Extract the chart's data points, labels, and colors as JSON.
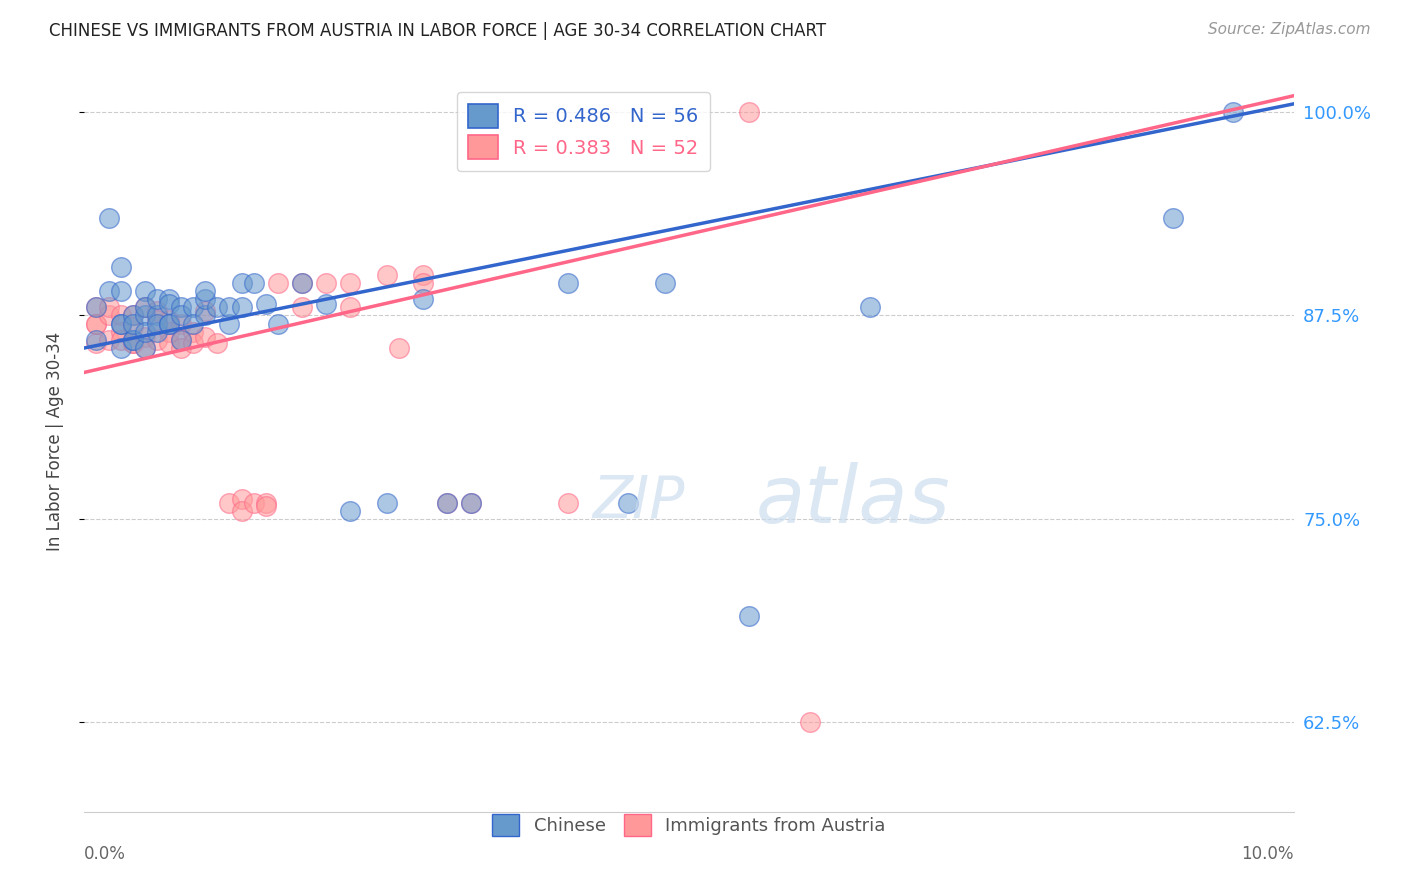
{
  "title": "CHINESE VS IMMIGRANTS FROM AUSTRIA IN LABOR FORCE | AGE 30-34 CORRELATION CHART",
  "source": "Source: ZipAtlas.com",
  "ylabel": "In Labor Force | Age 30-34",
  "xmin": 0.0,
  "xmax": 0.1,
  "ymin": 0.57,
  "ymax": 1.025,
  "yticks": [
    0.625,
    0.75,
    0.875,
    1.0
  ],
  "ytick_labels": [
    "62.5%",
    "75.0%",
    "87.5%",
    "100.0%"
  ],
  "legend_blue_r": "R = 0.486",
  "legend_blue_n": "N = 56",
  "legend_pink_r": "R = 0.383",
  "legend_pink_n": "N = 52",
  "blue_color": "#6699CC",
  "pink_color": "#FF9999",
  "trendline_blue": "#3366CC",
  "trendline_pink": "#FF6688",
  "title_color": "#222222",
  "axis_label_color": "#444444",
  "right_tick_color": "#3399FF",
  "watermark_color": "#CCDDEF",
  "blue_scatter_x": [
    0.001,
    0.001,
    0.002,
    0.002,
    0.003,
    0.003,
    0.003,
    0.003,
    0.003,
    0.004,
    0.004,
    0.004,
    0.004,
    0.005,
    0.005,
    0.005,
    0.005,
    0.005,
    0.006,
    0.006,
    0.006,
    0.006,
    0.007,
    0.007,
    0.007,
    0.007,
    0.008,
    0.008,
    0.008,
    0.009,
    0.009,
    0.01,
    0.01,
    0.01,
    0.011,
    0.012,
    0.012,
    0.013,
    0.013,
    0.014,
    0.015,
    0.016,
    0.018,
    0.02,
    0.022,
    0.025,
    0.028,
    0.03,
    0.032,
    0.04,
    0.045,
    0.048,
    0.055,
    0.065,
    0.09,
    0.095
  ],
  "blue_scatter_y": [
    0.88,
    0.86,
    0.89,
    0.935,
    0.87,
    0.89,
    0.905,
    0.87,
    0.855,
    0.86,
    0.875,
    0.86,
    0.87,
    0.855,
    0.875,
    0.89,
    0.865,
    0.88,
    0.875,
    0.865,
    0.885,
    0.87,
    0.885,
    0.87,
    0.882,
    0.87,
    0.88,
    0.86,
    0.875,
    0.88,
    0.87,
    0.875,
    0.885,
    0.89,
    0.88,
    0.87,
    0.88,
    0.88,
    0.895,
    0.895,
    0.882,
    0.87,
    0.895,
    0.882,
    0.755,
    0.76,
    0.885,
    0.76,
    0.76,
    0.895,
    0.76,
    0.895,
    0.69,
    0.88,
    0.935,
    1.0
  ],
  "pink_scatter_x": [
    0.001,
    0.001,
    0.001,
    0.001,
    0.002,
    0.002,
    0.002,
    0.003,
    0.003,
    0.003,
    0.004,
    0.004,
    0.004,
    0.004,
    0.005,
    0.005,
    0.005,
    0.006,
    0.006,
    0.006,
    0.007,
    0.007,
    0.007,
    0.008,
    0.008,
    0.008,
    0.009,
    0.009,
    0.01,
    0.01,
    0.011,
    0.012,
    0.013,
    0.013,
    0.014,
    0.015,
    0.015,
    0.016,
    0.018,
    0.018,
    0.02,
    0.022,
    0.022,
    0.025,
    0.026,
    0.028,
    0.028,
    0.03,
    0.032,
    0.04,
    0.055,
    0.06
  ],
  "pink_scatter_y": [
    0.88,
    0.87,
    0.858,
    0.87,
    0.875,
    0.88,
    0.86,
    0.875,
    0.865,
    0.86,
    0.875,
    0.858,
    0.868,
    0.858,
    0.88,
    0.862,
    0.855,
    0.878,
    0.86,
    0.872,
    0.872,
    0.865,
    0.858,
    0.87,
    0.86,
    0.855,
    0.865,
    0.858,
    0.878,
    0.862,
    0.858,
    0.76,
    0.762,
    0.755,
    0.76,
    0.76,
    0.758,
    0.895,
    0.895,
    0.88,
    0.895,
    0.895,
    0.88,
    0.9,
    0.855,
    0.9,
    0.895,
    0.76,
    0.76,
    0.76,
    1.0,
    0.625
  ],
  "blue_trendline_x0": 0.0,
  "blue_trendline_x1": 0.1,
  "blue_trendline_y0": 0.855,
  "blue_trendline_y1": 1.005,
  "pink_trendline_x0": 0.0,
  "pink_trendline_x1": 0.1,
  "pink_trendline_y0": 0.84,
  "pink_trendline_y1": 1.01
}
